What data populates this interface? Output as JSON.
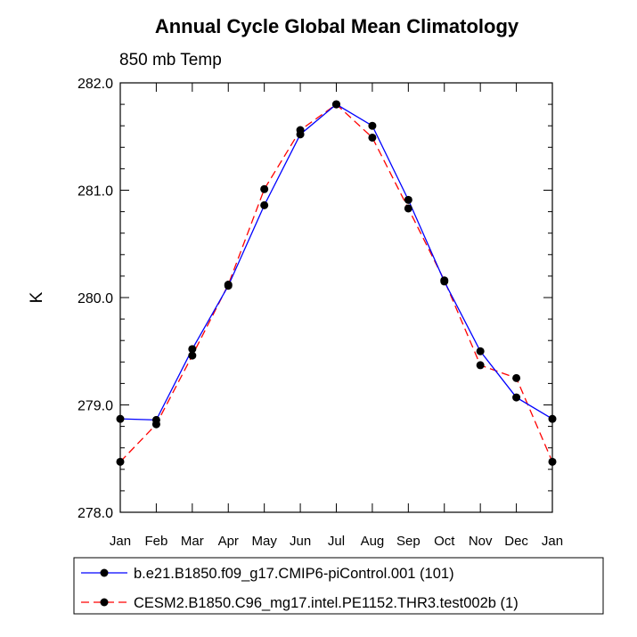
{
  "chart_data": {
    "type": "line",
    "title": "Annual Cycle Global Mean Climatology",
    "subtitle": "850 mb Temp",
    "xlabel": "",
    "ylabel": "K",
    "categories": [
      "Jan",
      "Feb",
      "Mar",
      "Apr",
      "May",
      "Jun",
      "Jul",
      "Aug",
      "Sep",
      "Oct",
      "Nov",
      "Dec",
      "Jan"
    ],
    "ylim": [
      278.0,
      282.0
    ],
    "yticks": [
      "278.0",
      "279.0",
      "280.0",
      "281.0",
      "282.0"
    ],
    "grid": false,
    "legend_position": "bottom",
    "series": [
      {
        "name": "b.e21.B1850.f09_g17.CMIP6-piControl.001 (101)",
        "color": "#0000ff",
        "line_style": "solid",
        "marker": "circle",
        "values": [
          278.87,
          278.86,
          279.52,
          280.11,
          280.86,
          281.52,
          281.8,
          281.6,
          280.91,
          280.15,
          279.5,
          279.07,
          278.87
        ]
      },
      {
        "name": "CESM2.B1850.C96_mg17.intel.PE1152.THR3.test002b (1)",
        "color": "#ff0000",
        "line_style": "dashed",
        "marker": "circle",
        "values": [
          278.47,
          278.82,
          279.46,
          280.12,
          281.01,
          281.56,
          281.8,
          281.49,
          280.83,
          280.16,
          279.37,
          279.25,
          278.47
        ]
      }
    ]
  }
}
